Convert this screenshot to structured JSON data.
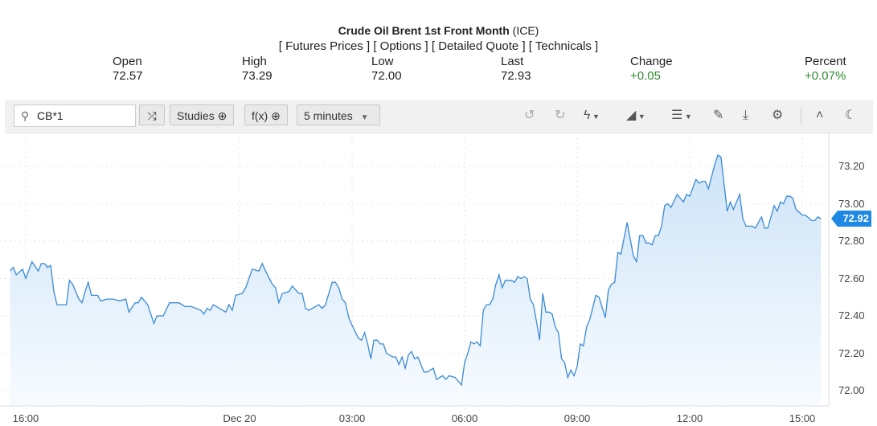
{
  "header": {
    "title": "Crude Oil Brent 1st Front Month",
    "exchange": "(ICE)",
    "links": [
      "[ Futures Prices ]",
      "[ Options ]",
      "[ Detailed Quote ]",
      "[ Technicals ]"
    ]
  },
  "stats": [
    {
      "label": "Open",
      "value": "72.57"
    },
    {
      "label": "High",
      "value": "73.29"
    },
    {
      "label": "Low",
      "value": "72.00"
    },
    {
      "label": "Last",
      "value": "72.93"
    },
    {
      "label": "Change",
      "value": "+0.05"
    },
    {
      "label": "Percent",
      "value": "+0.07%"
    }
  ],
  "toolbar": {
    "symbol_value": "CB*1",
    "studies_label": "Studies",
    "fx_label": "f(x)",
    "interval_label": "5 minutes",
    "icons": [
      "search-icon",
      "compare-icon",
      "plus-circle-icon",
      "caret-down-icon",
      "undo-icon",
      "redo-icon",
      "flash-icon",
      "chart-type-icon",
      "layout-icon",
      "pencil-icon",
      "download-icon",
      "gear-icon",
      "collapse-icon",
      "moon-icon"
    ]
  },
  "colors": {
    "line": "#3a8ad6",
    "fill_top": "#cde3f7",
    "price_tag": "#1e88e5",
    "positive": "#2e8b2e"
  },
  "chart_data": {
    "type": "area",
    "ylim": [
      71.93,
      73.37
    ],
    "yticks": [
      "73.20",
      "73.00",
      "72.80",
      "72.60",
      "72.40",
      "72.20",
      "72.00"
    ],
    "xticks": [
      "16:00",
      "Dec 20",
      "03:00",
      "06:00",
      "09:00",
      "12:00",
      "15:00"
    ],
    "last_price_label": "72.92",
    "grid": true,
    "x": [
      "15:35",
      "15:40",
      "15:45",
      "15:55",
      "16:00",
      "16:10",
      "16:20",
      "16:25",
      "16:30",
      "16:35",
      "16:40",
      "16:45",
      "16:50",
      "17:05",
      "17:10",
      "17:15",
      "17:25",
      "17:30",
      "17:35",
      "17:40",
      "17:45",
      "17:55",
      "18:00",
      "18:10",
      "18:20",
      "18:30",
      "18:40",
      "18:45",
      "18:55",
      "19:00",
      "19:05",
      "19:15",
      "19:25",
      "19:30",
      "19:40",
      "19:50",
      "20:05",
      "20:15",
      "20:25",
      "20:40",
      "20:45",
      "20:50",
      "20:55",
      "21:00",
      "21:10",
      "21:20",
      "21:25",
      "00:00",
      "00:05",
      "00:15",
      "00:20",
      "00:30",
      "00:40",
      "00:45",
      "00:50",
      "01:00",
      "01:05",
      "01:10",
      "01:15",
      "01:25",
      "01:30",
      "01:40",
      "01:45",
      "01:50",
      "01:55",
      "02:10",
      "02:15",
      "02:20",
      "02:30",
      "02:35",
      "02:40",
      "02:45",
      "02:50",
      "02:55",
      "03:00",
      "03:10",
      "03:15",
      "03:20",
      "03:25",
      "03:30",
      "03:35",
      "03:40",
      "03:45",
      "03:50",
      "03:55",
      "04:05",
      "04:10",
      "04:15",
      "04:20",
      "04:25",
      "04:30",
      "04:35",
      "04:40",
      "04:45",
      "04:55",
      "05:00",
      "05:10",
      "05:15",
      "05:25",
      "05:30",
      "05:35",
      "05:45",
      "05:55",
      "06:00",
      "06:05",
      "06:10",
      "06:15",
      "06:20",
      "06:25",
      "06:30",
      "06:35",
      "06:40",
      "06:45",
      "06:50",
      "06:55",
      "07:00",
      "07:05",
      "07:15",
      "07:20",
      "07:25",
      "07:30",
      "07:35",
      "07:40",
      "07:45",
      "07:50",
      "07:55",
      "08:00",
      "08:05",
      "08:10",
      "08:15",
      "08:20",
      "08:25",
      "08:30",
      "08:35",
      "08:40",
      "08:45",
      "08:50",
      "08:55",
      "09:00",
      "09:05",
      "09:10",
      "09:15",
      "09:20",
      "09:30",
      "09:35",
      "09:45",
      "09:50",
      "09:55",
      "10:00",
      "10:05",
      "10:10",
      "10:20",
      "10:30",
      "10:35",
      "10:40",
      "10:45",
      "10:50",
      "10:55",
      "11:00",
      "11:05",
      "11:10",
      "11:15",
      "11:20",
      "11:25",
      "11:30",
      "11:40",
      "11:45",
      "11:50",
      "11:55",
      "12:00",
      "12:10",
      "12:15",
      "12:20",
      "12:25",
      "12:30",
      "12:40",
      "12:45",
      "12:50",
      "13:00",
      "13:05",
      "13:10",
      "13:20",
      "13:25",
      "13:30",
      "13:40",
      "13:45",
      "13:55",
      "14:00",
      "14:05",
      "14:15",
      "14:20",
      "14:25",
      "14:30",
      "14:35",
      "14:40",
      "14:45",
      "14:50",
      "15:00",
      "15:05",
      "15:15",
      "15:20",
      "15:25",
      "15:30"
    ],
    "y": [
      72.64,
      72.66,
      72.62,
      72.65,
      72.6,
      72.69,
      72.64,
      72.68,
      72.68,
      72.66,
      72.67,
      72.53,
      72.46,
      72.46,
      72.59,
      72.57,
      72.49,
      72.47,
      72.53,
      72.58,
      72.51,
      72.51,
      72.48,
      72.49,
      72.49,
      72.48,
      72.49,
      72.42,
      72.47,
      72.47,
      72.5,
      72.46,
      72.36,
      72.4,
      72.4,
      72.47,
      72.47,
      72.45,
      72.45,
      72.43,
      72.41,
      72.44,
      72.43,
      72.46,
      72.44,
      72.42,
      72.46,
      72.43,
      72.51,
      72.52,
      72.55,
      72.65,
      72.64,
      72.68,
      72.64,
      72.57,
      72.55,
      72.47,
      72.52,
      72.53,
      72.56,
      72.52,
      72.52,
      72.44,
      72.43,
      72.46,
      72.44,
      72.46,
      72.58,
      72.58,
      72.55,
      72.49,
      72.47,
      72.39,
      72.35,
      72.28,
      72.27,
      72.31,
      72.25,
      72.17,
      72.27,
      72.27,
      72.25,
      72.25,
      72.2,
      72.18,
      72.18,
      72.14,
      72.18,
      72.12,
      72.19,
      72.21,
      72.17,
      72.18,
      72.1,
      72.1,
      72.12,
      72.06,
      72.08,
      72.06,
      72.08,
      72.07,
      72.03,
      72.15,
      72.2,
      72.26,
      72.25,
      72.26,
      72.24,
      72.43,
      72.46,
      72.46,
      72.49,
      72.57,
      72.62,
      72.55,
      72.59,
      72.59,
      72.58,
      72.61,
      72.6,
      72.61,
      72.6,
      72.49,
      72.46,
      72.37,
      72.27,
      72.52,
      72.42,
      72.42,
      72.41,
      72.34,
      72.31,
      72.17,
      72.15,
      72.07,
      72.11,
      72.08,
      72.13,
      72.25,
      72.24,
      72.34,
      72.38,
      72.51,
      72.5,
      72.39,
      72.54,
      72.57,
      72.58,
      72.74,
      72.73,
      72.9,
      72.72,
      72.69,
      72.83,
      72.83,
      72.79,
      72.79,
      72.78,
      72.83,
      72.83,
      72.88,
      72.99,
      73.0,
      72.98,
      73.05,
      73.03,
      73.01,
      73.05,
      73.04,
      73.13,
      73.11,
      73.12,
      73.12,
      73.08,
      73.21,
      73.26,
      73.25,
      72.96,
      73.01,
      72.97,
      73.05,
      72.92,
      72.88,
      72.88,
      72.87,
      72.93,
      72.87,
      72.87,
      72.99,
      72.96,
      73.01,
      73.0,
      73.04,
      73.04,
      73.03,
      72.97,
      72.94,
      72.94,
      72.91,
      72.91,
      72.93,
      72.92
    ]
  }
}
